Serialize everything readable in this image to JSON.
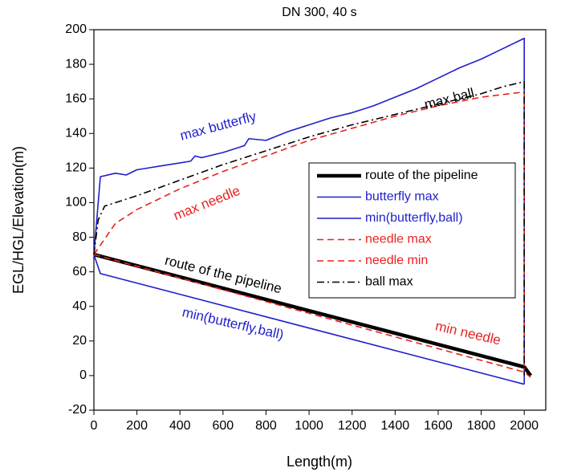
{
  "chart_data": {
    "type": "line",
    "title": "DN 300, 40 s",
    "xlabel": "Length(m)",
    "ylabel": "EGL/HGL/Elevation(m)",
    "xlim": [
      0,
      2100
    ],
    "ylim": [
      -20,
      200
    ],
    "xticks": [
      0,
      200,
      400,
      600,
      800,
      1000,
      1200,
      1400,
      1600,
      1800,
      2000
    ],
    "yticks": [
      -20,
      0,
      20,
      40,
      60,
      80,
      100,
      120,
      140,
      160,
      180,
      200
    ],
    "legend": "right",
    "series": [
      {
        "name": "route of the pipeline",
        "color": "#000000",
        "linestyle": "thick",
        "x": [
          0,
          2000,
          2030
        ],
        "values": [
          70,
          5,
          0
        ]
      },
      {
        "name": "butterfly max",
        "color": "#1f1fcc",
        "linestyle": "solid",
        "x": [
          0,
          20,
          30,
          100,
          150,
          200,
          250,
          300,
          350,
          400,
          450,
          470,
          500,
          600,
          700,
          720,
          800,
          900,
          1000,
          1100,
          1200,
          1300,
          1400,
          1500,
          1600,
          1700,
          1800,
          1900,
          2000,
          2000
        ],
        "values": [
          70,
          100,
          115,
          117,
          116,
          119,
          120,
          121,
          122,
          123,
          124,
          127,
          126,
          129,
          133,
          137,
          136,
          141,
          145,
          149,
          152,
          156,
          161,
          166,
          172,
          178,
          183,
          189,
          195,
          -5
        ]
      },
      {
        "name": "min(butterfly,ball)",
        "color": "#1f1fcc",
        "linestyle": "solid",
        "x": [
          0,
          30,
          2000
        ],
        "values": [
          70,
          59,
          -5
        ]
      },
      {
        "name": "needle max",
        "color": "#e8231f",
        "linestyle": "dashed",
        "x": [
          0,
          100,
          200,
          400,
          600,
          800,
          1000,
          1200,
          1400,
          1600,
          1800,
          2000,
          2000
        ],
        "values": [
          70,
          88,
          96,
          108,
          118,
          127,
          136,
          143,
          150,
          156,
          161,
          164,
          2
        ]
      },
      {
        "name": "needle min",
        "color": "#e8231f",
        "linestyle": "dashed",
        "x": [
          0,
          2000,
          2030
        ],
        "values": [
          70,
          2,
          -1
        ]
      },
      {
        "name": "ball max",
        "color": "#000000",
        "linestyle": "dashdot",
        "x": [
          0,
          20,
          50,
          200,
          400,
          600,
          800,
          1000,
          1200,
          1400,
          1600,
          1800,
          1900,
          2000,
          2000
        ],
        "values": [
          70,
          90,
          98,
          104,
          113,
          122,
          130,
          138,
          145,
          151,
          157,
          163,
          167,
          170,
          0
        ]
      }
    ],
    "annotations": [
      {
        "text": "max butterfly",
        "color": "#1f1fcc"
      },
      {
        "text": "max ball",
        "color": "#000000"
      },
      {
        "text": "max needle",
        "color": "#e8231f"
      },
      {
        "text": "route of the pipeline",
        "color": "#000000"
      },
      {
        "text": "min(butterfly,ball)",
        "color": "#1f1fcc"
      },
      {
        "text": "min needle",
        "color": "#e8231f"
      }
    ]
  }
}
